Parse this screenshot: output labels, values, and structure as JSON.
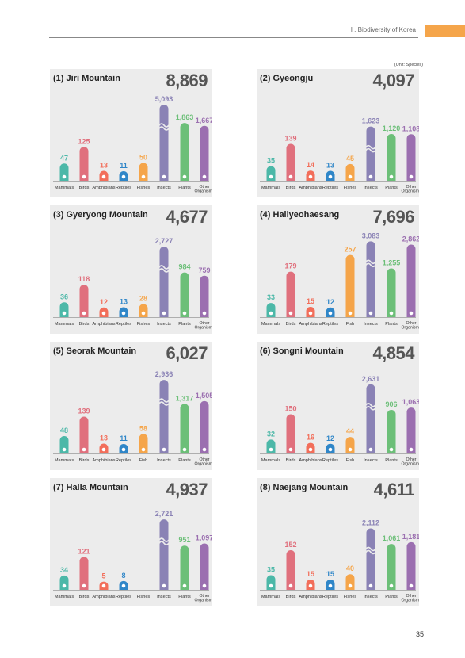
{
  "header": {
    "section": "I . Biodiversity of Korea",
    "tab_color": "#f5a54a"
  },
  "unit_note": "(Unit: Species)",
  "page_number": "35",
  "colors": {
    "Mammals": "#4cb8a8",
    "Birds": "#e0707d",
    "Amphibians": "#f26e5a",
    "Reptiles": "#2f86c8",
    "Fishes": "#f5a54a",
    "Insects": "#8a82b5",
    "Plants": "#6cbf78",
    "Other": "#9b6fb0",
    "panel_bg": "#ececec"
  },
  "chart_data": [
    {
      "type": "bar",
      "title": "(1) Jiri Mountain",
      "total": "8,869",
      "categories": [
        "Mammals",
        "Birds",
        "Amphibians",
        "Reptiles",
        "Fishes",
        "Insects",
        "Plants",
        "Other Organisms"
      ],
      "values": [
        47,
        125,
        13,
        11,
        50,
        5093,
        1863,
        1667
      ],
      "value_labels": [
        "47",
        "125",
        "13",
        "11",
        "50",
        "5,093",
        "1,863",
        "1,667"
      ]
    },
    {
      "type": "bar",
      "title": "(2) Gyeongju",
      "total": "4,097",
      "categories": [
        "Mammals",
        "Birds",
        "Amphibians",
        "Reptiles",
        "Fishes",
        "Insects",
        "Plants",
        "Other Organisms"
      ],
      "values": [
        35,
        139,
        14,
        13,
        45,
        1623,
        1120,
        1108
      ],
      "value_labels": [
        "35",
        "139",
        "14",
        "13",
        "45",
        "1,623",
        "1,120",
        "1,108"
      ]
    },
    {
      "type": "bar",
      "title": "(3) Gyeryong Mountain",
      "total": "4,677",
      "categories": [
        "Mammals",
        "Birds",
        "Amphibians",
        "Reptiles",
        "Fishes",
        "Insects",
        "Plants",
        "Other Organisms"
      ],
      "values": [
        36,
        118,
        12,
        13,
        28,
        2727,
        984,
        759
      ],
      "value_labels": [
        "36",
        "118",
        "12",
        "13",
        "28",
        "2,727",
        "984",
        "759"
      ]
    },
    {
      "type": "bar",
      "title": "(4) Hallyeohaesang",
      "total": "7,696",
      "categories": [
        "Mammals",
        "Birds",
        "Amphibians",
        "Reptiles",
        "Fish",
        "Insects",
        "Plants",
        "Other Organisms"
      ],
      "values": [
        33,
        179,
        15,
        12,
        257,
        3083,
        1255,
        2862
      ],
      "value_labels": [
        "33",
        "179",
        "15",
        "12",
        "257",
        "3,083",
        "1,255",
        "2,862"
      ]
    },
    {
      "type": "bar",
      "title": "(5) Seorak Mountain",
      "total": "6,027",
      "categories": [
        "Mammals",
        "Birds",
        "Amphibians",
        "Reptiles",
        "Fish",
        "Insects",
        "Plants",
        "Other Organisms"
      ],
      "values": [
        48,
        139,
        13,
        11,
        58,
        2936,
        1317,
        1505
      ],
      "value_labels": [
        "48",
        "139",
        "13",
        "11",
        "58",
        "2,936",
        "1,317",
        "1,505"
      ]
    },
    {
      "type": "bar",
      "title": "(6) Songni Mountain",
      "total": "4,854",
      "categories": [
        "Mammals",
        "Birds",
        "Amphibians",
        "Reptiles",
        "Fish",
        "Insects",
        "Plants",
        "Other Organisms"
      ],
      "values": [
        32,
        150,
        16,
        12,
        44,
        2631,
        906,
        1063
      ],
      "value_labels": [
        "32",
        "150",
        "16",
        "12",
        "44",
        "2,631",
        "906",
        "1,063"
      ]
    },
    {
      "type": "bar",
      "title": "(7) Halla Mountain",
      "total": "4,937",
      "categories": [
        "Mammals",
        "Birds",
        "Amphibians",
        "Reptiles",
        "Fishes",
        "Insects",
        "Plants",
        "Other Organisms"
      ],
      "values": [
        34,
        121,
        5,
        8,
        null,
        2721,
        951,
        1097
      ],
      "value_labels": [
        "34",
        "121",
        "5",
        "8",
        "",
        "2,721",
        "951",
        "1,097"
      ]
    },
    {
      "type": "bar",
      "title": "(8) Naejang Mountain",
      "total": "4,611",
      "categories": [
        "Mammals",
        "Birds",
        "Amphibians",
        "Reptiles",
        "Fishes",
        "Insects",
        "Plants",
        "Other Organisms"
      ],
      "values": [
        35,
        152,
        15,
        15,
        40,
        2112,
        1061,
        1181
      ],
      "value_labels": [
        "35",
        "152",
        "15",
        "15",
        "40",
        "2,112",
        "1,061",
        "1,181"
      ]
    }
  ]
}
